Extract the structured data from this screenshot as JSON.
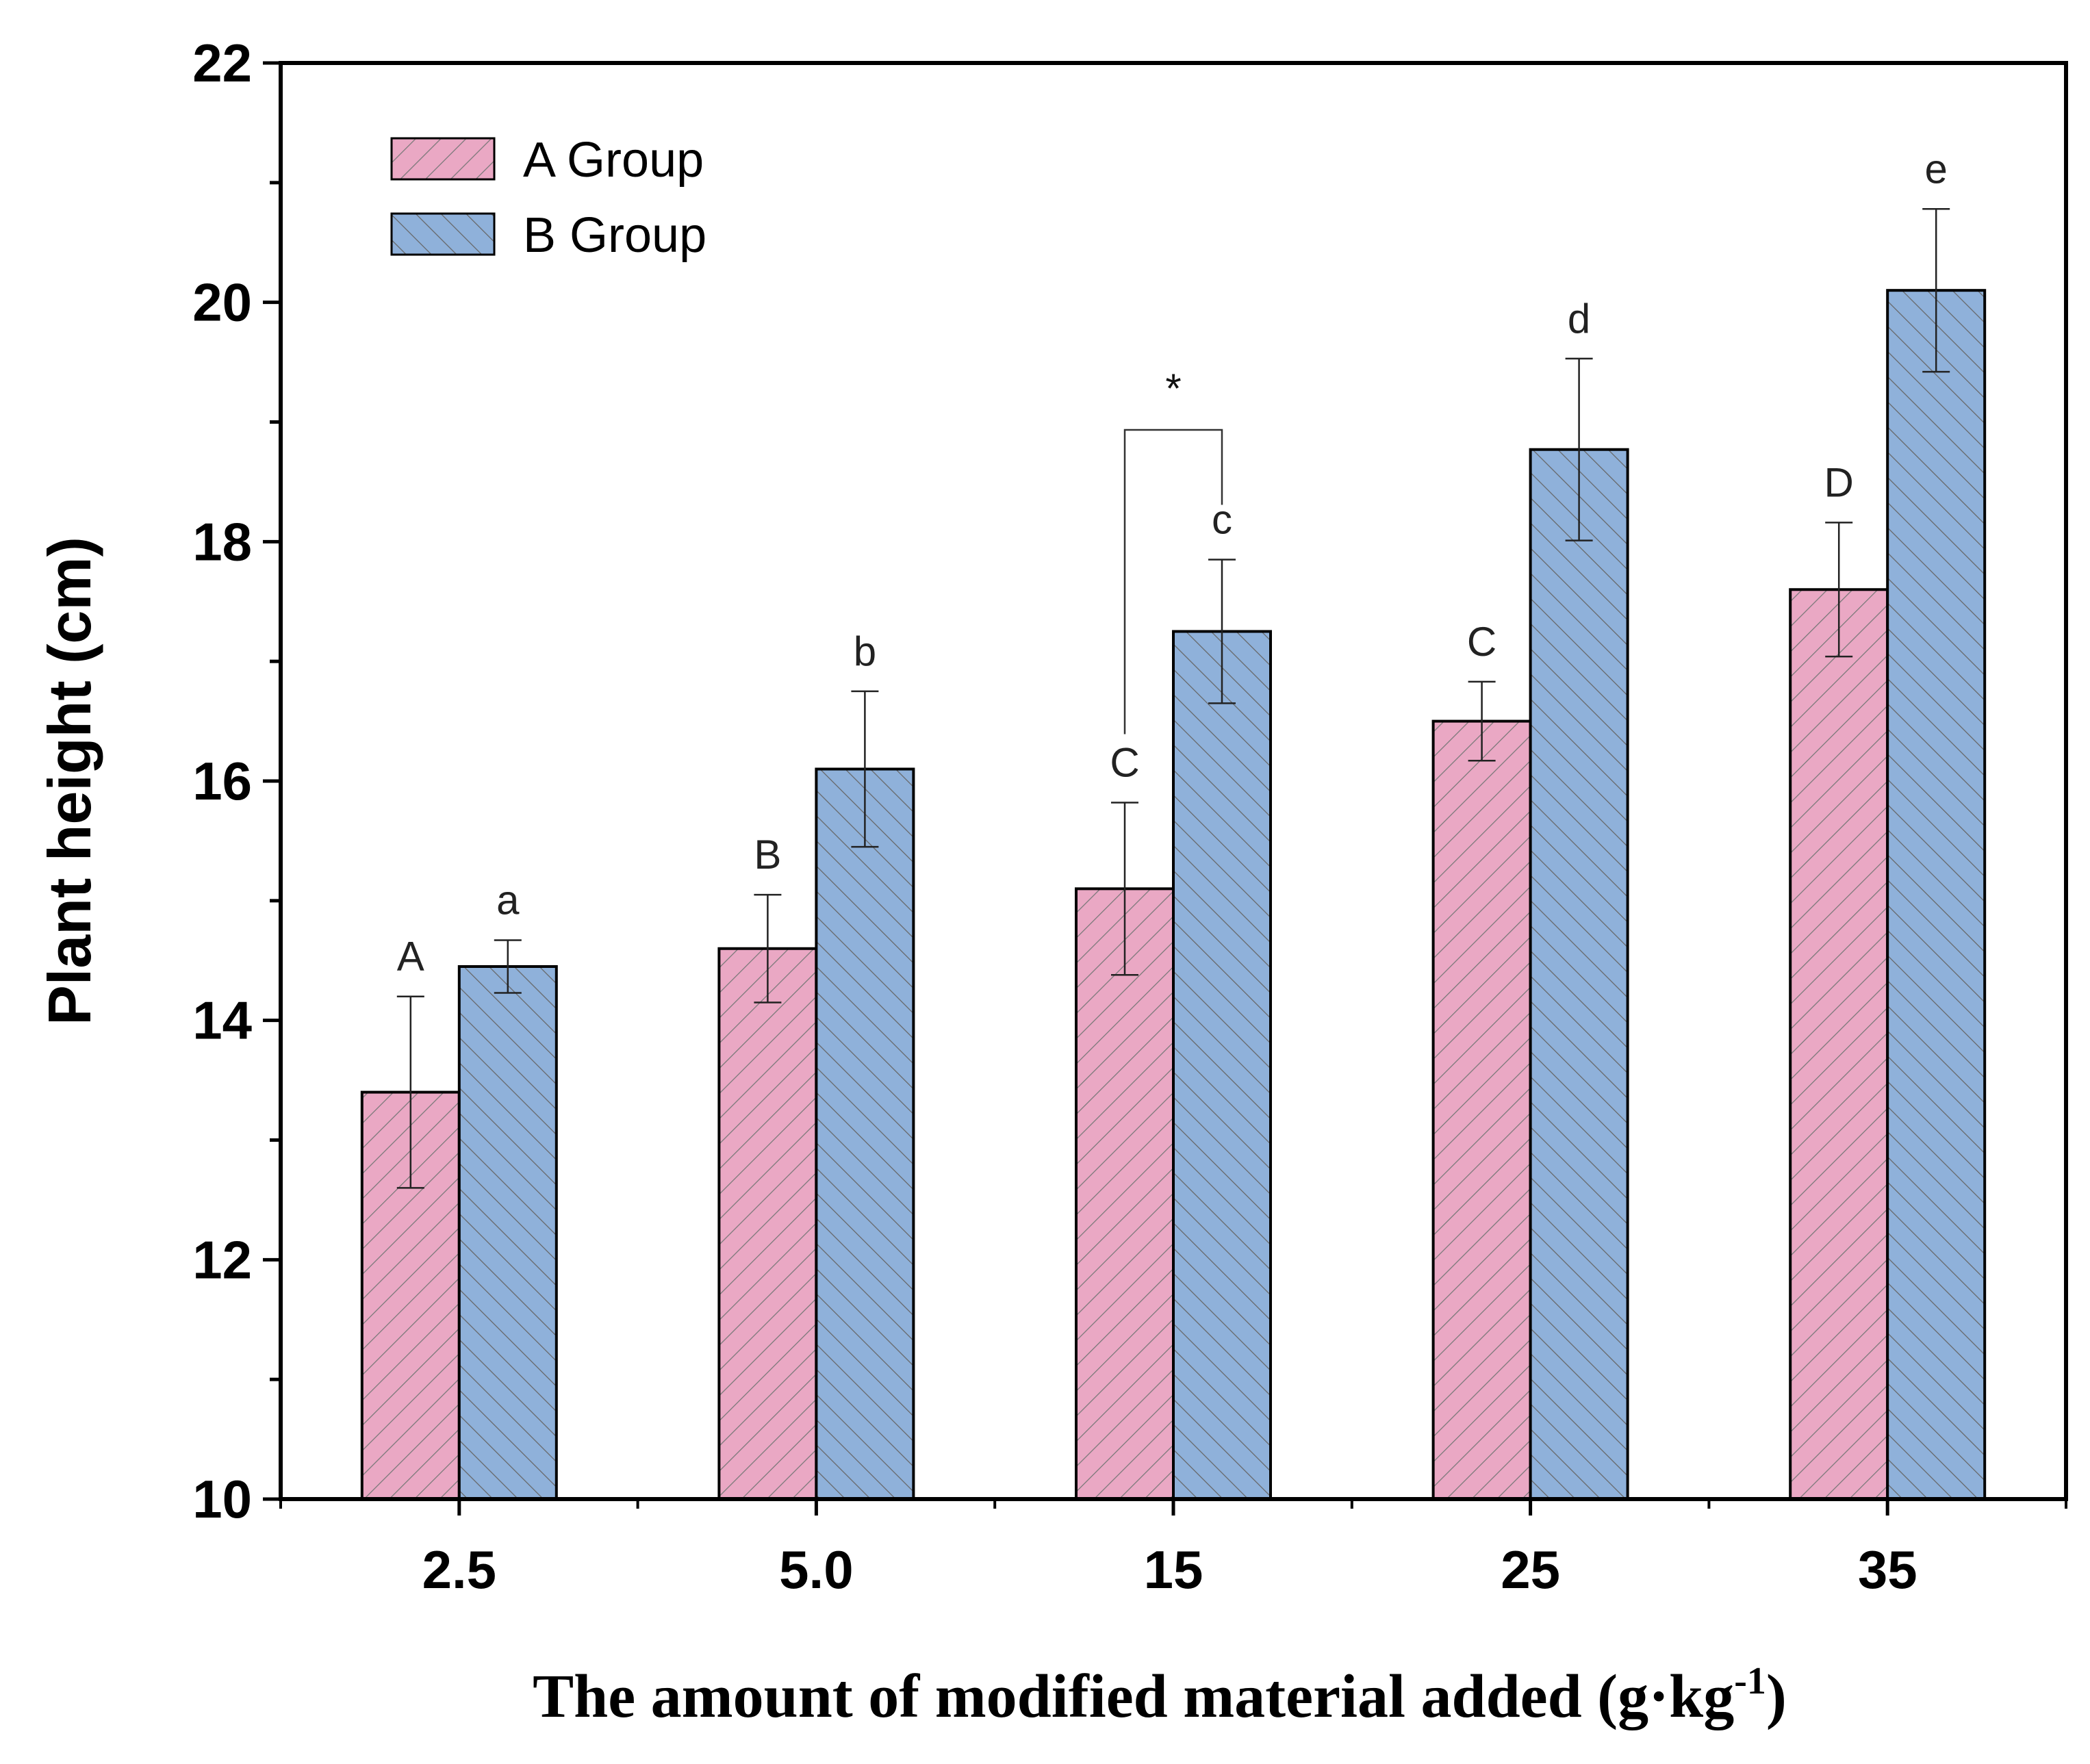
{
  "chart_data": {
    "type": "bar",
    "categories": [
      "2.5",
      "5.0",
      "15",
      "25",
      "35"
    ],
    "series": [
      {
        "name": "A Group",
        "color": "#EAA8C4",
        "values": [
          13.4,
          14.6,
          15.1,
          16.5,
          17.6
        ],
        "errors": [
          0.8,
          0.45,
          0.72,
          0.33,
          0.56
        ],
        "sig_letters": [
          "A",
          "B",
          "C",
          "C",
          "D"
        ]
      },
      {
        "name": "B Group",
        "color": "#8FB1DA",
        "values": [
          14.45,
          16.1,
          17.25,
          18.77,
          20.1
        ],
        "errors": [
          0.22,
          0.65,
          0.6,
          0.76,
          0.68
        ],
        "sig_letters": [
          "a",
          "b",
          "c",
          "d",
          "e"
        ]
      }
    ],
    "significance_bracket": {
      "category": "15",
      "label": "*"
    },
    "title": "",
    "xlabel": "The amount of modified material added (g·kg",
    "xlabel_superscript": "-1",
    "xlabel_suffix": ")",
    "ylabel": "Plant height (cm)",
    "ylim": [
      10,
      22
    ],
    "yticks": [
      10,
      12,
      14,
      16,
      18,
      20,
      22
    ],
    "legend_position": "top-left"
  }
}
